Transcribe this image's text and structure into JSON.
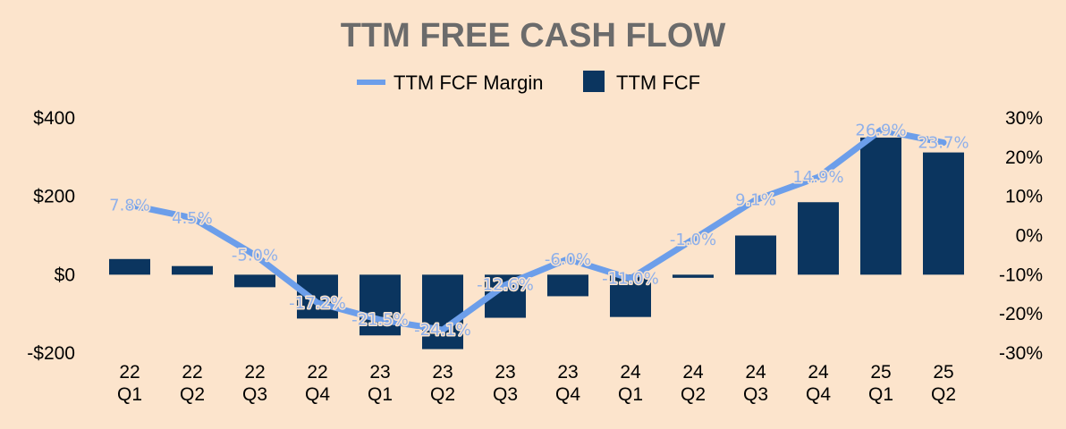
{
  "chart_data": {
    "type": "bar",
    "title": "TTM FREE CASH FLOW",
    "categories": [
      [
        "22",
        "Q1"
      ],
      [
        "22",
        "Q2"
      ],
      [
        "22",
        "Q3"
      ],
      [
        "22",
        "Q4"
      ],
      [
        "23",
        "Q1"
      ],
      [
        "23",
        "Q2"
      ],
      [
        "23",
        "Q3"
      ],
      [
        "23",
        "Q4"
      ],
      [
        "24",
        "Q1"
      ],
      [
        "24",
        "Q2"
      ],
      [
        "24",
        "Q3"
      ],
      [
        "24",
        "Q4"
      ],
      [
        "25",
        "Q1"
      ],
      [
        "25",
        "Q2"
      ]
    ],
    "series": [
      {
        "name": "TTM FCF",
        "type": "bar",
        "axis": "left",
        "color": "#0b355f",
        "values": [
          40,
          22,
          -32,
          -112,
          -155,
          -190,
          -110,
          -55,
          -108,
          -8,
          100,
          185,
          350,
          312
        ]
      },
      {
        "name": "TTM FCF Margin",
        "type": "line",
        "axis": "right",
        "color": "#6c9eea",
        "values": [
          7.8,
          4.5,
          -5.0,
          -17.2,
          -21.5,
          -24.1,
          -12.6,
          -6.0,
          -11.0,
          -1.0,
          9.1,
          14.9,
          26.9,
          23.7
        ],
        "labels": [
          "7.8%",
          "4.5%",
          "-5.0%",
          "-17.2%",
          "-21.5%",
          "-24.1%",
          "-12.6%",
          "-6.0%",
          "-11.0%",
          "-1.0%",
          "9.1%",
          "14.9%",
          "26.9%",
          "23.7%"
        ]
      }
    ],
    "y_left": {
      "min": -200,
      "max": 400,
      "ticks": [
        400,
        200,
        0,
        -200
      ],
      "tick_labels": [
        "$400",
        "$200",
        "$0",
        "-$200"
      ]
    },
    "y_right": {
      "min": -30,
      "max": 30,
      "ticks": [
        30,
        20,
        10,
        0,
        -10,
        -20,
        -30
      ],
      "tick_labels": [
        "30%",
        "20%",
        "10%",
        "0%",
        "-10%",
        "-20%",
        "-30%"
      ]
    },
    "legend": {
      "position": "top-center",
      "entries": [
        {
          "label": "TTM FCF Margin",
          "kind": "line",
          "color": "#6c9eea"
        },
        {
          "label": "TTM FCF",
          "kind": "bar",
          "color": "#0b355f"
        }
      ]
    },
    "grid": false
  }
}
